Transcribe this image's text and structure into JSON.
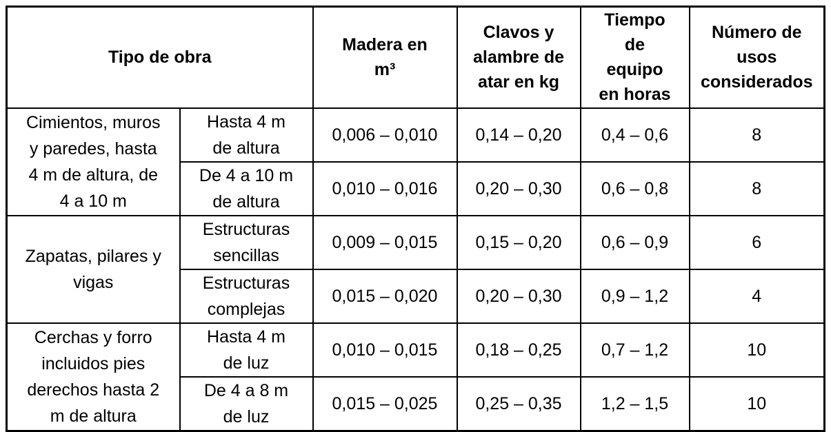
{
  "colors": {
    "background": "#ffffff",
    "border": "#000000",
    "text": "#000000"
  },
  "table": {
    "headers": {
      "tipo": "Tipo de obra",
      "madera": "Madera en\nm³",
      "clavos": "Clavos y\nalambre de\natar en kg",
      "tiempo": "Tiempo\nde\nequipo\nen horas",
      "usos": "Número de\nusos\nconsiderados"
    },
    "groups": [
      {
        "label": "Cimientos, muros\ny paredes, hasta\n4 m de altura, de\n4 a 10 m",
        "rows": [
          {
            "subtype": "Hasta 4 m\nde altura",
            "madera": "0,006 – 0,010",
            "clavos": "0,14 – 0,20",
            "tiempo": "0,4 – 0,6",
            "usos": "8"
          },
          {
            "subtype": "De 4 a 10 m\nde altura",
            "madera": "0,010 – 0,016",
            "clavos": "0,20 – 0,30",
            "tiempo": "0,6 – 0,8",
            "usos": "8"
          }
        ]
      },
      {
        "label": "Zapatas, pilares y\nvigas",
        "rows": [
          {
            "subtype": "Estructuras\nsencillas",
            "madera": "0,009 – 0,015",
            "clavos": "0,15 – 0,20",
            "tiempo": "0,6 – 0,9",
            "usos": "6"
          },
          {
            "subtype": "Estructuras\ncomplejas",
            "madera": "0,015 – 0,020",
            "clavos": "0,20 – 0,30",
            "tiempo": "0,9 – 1,2",
            "usos": "4"
          }
        ]
      },
      {
        "label": "Cerchas y forro\nincluidos pies\nderechos hasta 2\nm de altura",
        "rows": [
          {
            "subtype": "Hasta 4 m\nde luz",
            "madera": "0,010 – 0,015",
            "clavos": "0,18 – 0,25",
            "tiempo": "0,7 – 1,2",
            "usos": "10"
          },
          {
            "subtype": "De 4 a 8 m\nde luz",
            "madera": "0,015 – 0,025",
            "clavos": "0,25 – 0,35",
            "tiempo": "1,2 – 1,5",
            "usos": "10"
          }
        ]
      }
    ]
  }
}
